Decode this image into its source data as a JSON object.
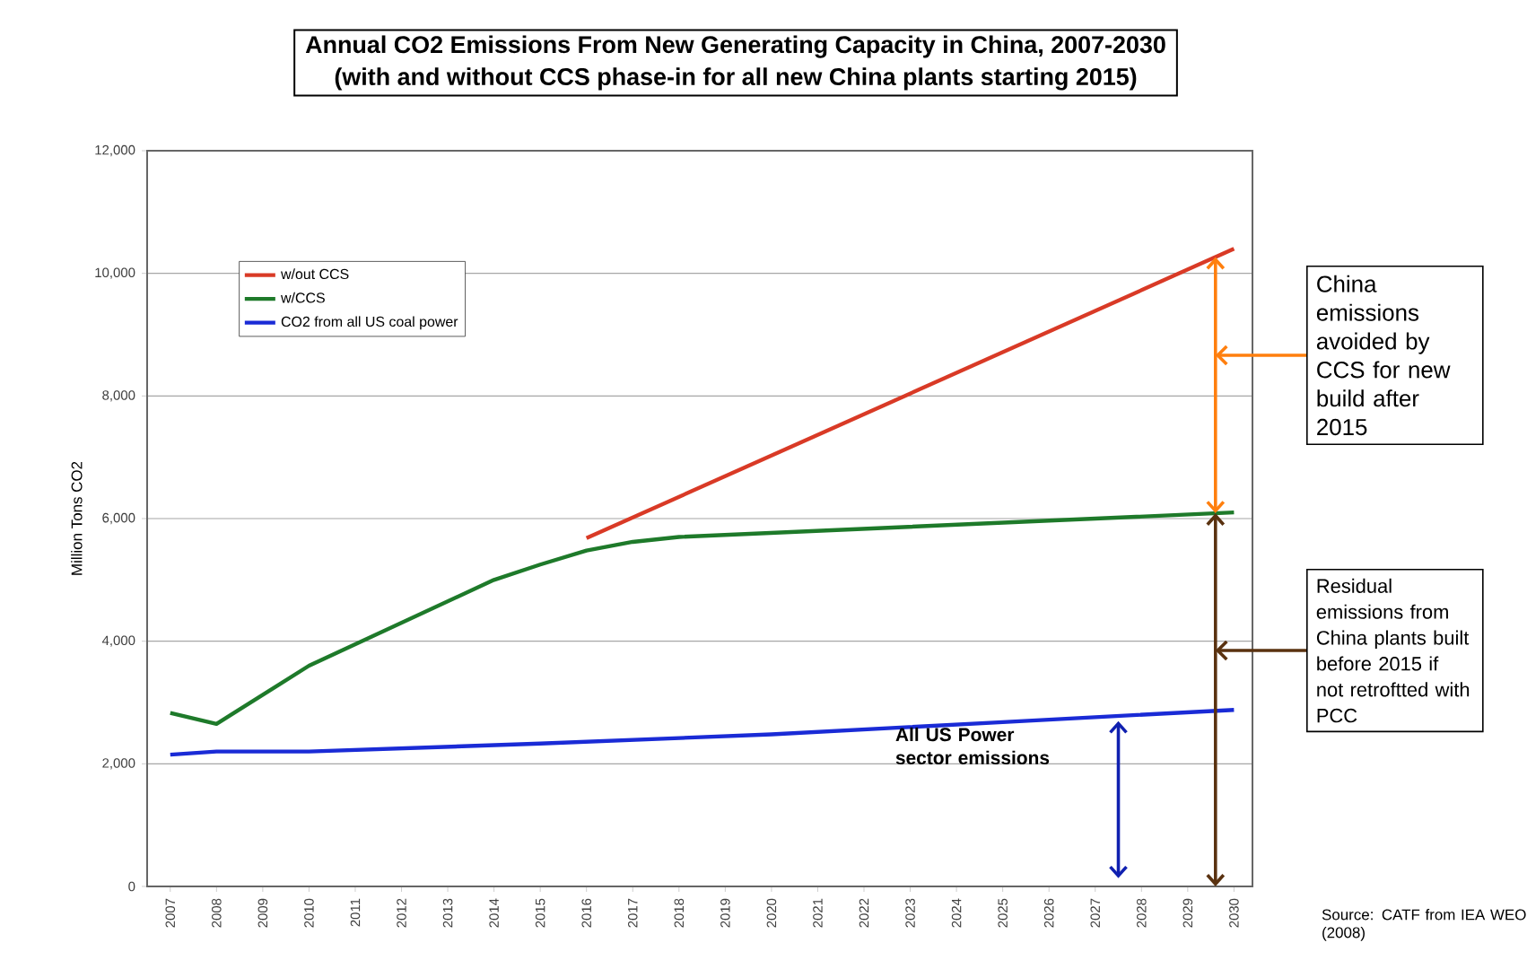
{
  "chart_data": {
    "type": "line",
    "title": "Annual CO2 Emissions From New Generating Capacity in China, 2007-2030",
    "subtitle": "(with and without CCS phase-in for all new China plants starting 2015)",
    "ylabel": "Million Tons CO2",
    "xlim": [
      2006.5,
      2030.4
    ],
    "xticks": [
      2007,
      2008,
      2009,
      2010,
      2011,
      2012,
      2013,
      2014,
      2015,
      2016,
      2017,
      2018,
      2019,
      2020,
      2021,
      2022,
      2023,
      2024,
      2025,
      2026,
      2027,
      2028,
      2029,
      2030
    ],
    "ylim": [
      0,
      12000
    ],
    "yticks": [
      {
        "value": 0,
        "label": "0"
      },
      {
        "value": 2000,
        "label": "2,000"
      },
      {
        "value": 4000,
        "label": "4,000"
      },
      {
        "value": 6000,
        "label": "6,000"
      },
      {
        "value": 8000,
        "label": "8,000"
      },
      {
        "value": 10000,
        "label": "10,000"
      },
      {
        "value": 12000,
        "label": "12,000"
      }
    ],
    "grid": "y",
    "legend": "top left",
    "series": [
      {
        "name": "w/out CCS",
        "color": "#d93a26",
        "x": [
          2016,
          2030
        ],
        "values": [
          5680,
          10400
        ]
      },
      {
        "name": "w/CCS",
        "color": "#1e7a2a",
        "x": [
          2007,
          2008,
          2010,
          2014,
          2015,
          2016,
          2017,
          2018,
          2030
        ],
        "values": [
          2830,
          2650,
          3600,
          5000,
          5250,
          5480,
          5620,
          5700,
          6100
        ]
      },
      {
        "name": "CO2 from all US coal power",
        "color": "#1a2bd6",
        "x": [
          2007,
          2008,
          2010,
          2015,
          2020,
          2025,
          2030
        ],
        "values": [
          2150,
          2200,
          2200,
          2330,
          2480,
          2680,
          2880
        ]
      }
    ],
    "annotations": [
      "China emissions avoided by CCS for new build after 2015",
      "Residual emissions from China plants built before 2015 if not retroftted with PCC",
      "All US Power sector emissions",
      "Source: CATF from IEA WEO (2008)"
    ]
  }
}
